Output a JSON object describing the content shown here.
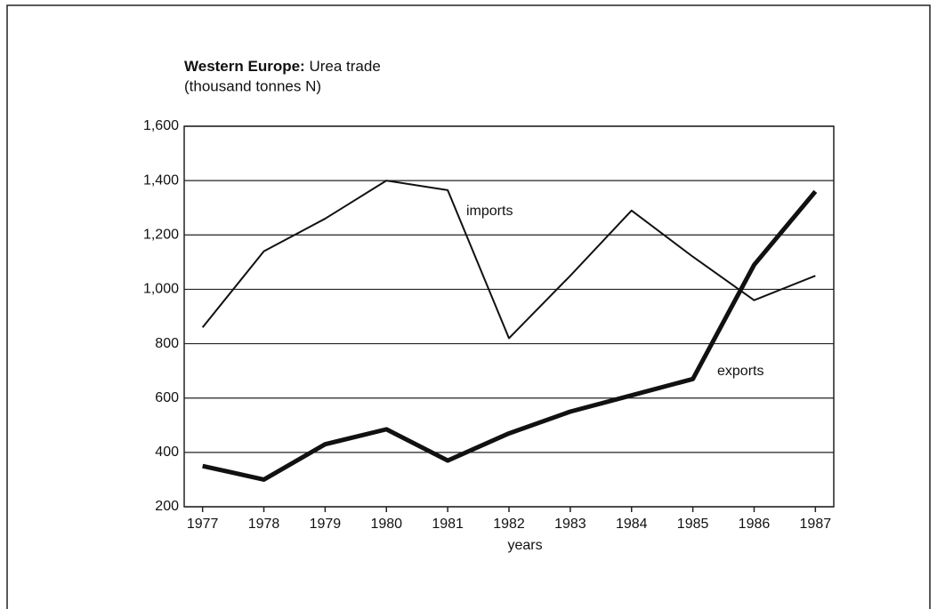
{
  "chart_data": {
    "type": "line",
    "title": [
      "Western Europe:",
      "Urea trade"
    ],
    "subtitle": "(thousand tonnes N)",
    "x_label": "years",
    "x": [
      1977,
      1978,
      1979,
      1980,
      1981,
      1982,
      1983,
      1984,
      1985,
      1986,
      1987
    ],
    "xlim": [
      1976.7,
      1987.3
    ],
    "xticks": [
      1977,
      1978,
      1979,
      1980,
      1981,
      1982,
      1983,
      1984,
      1985,
      1986,
      1987
    ],
    "ylim": [
      200,
      1600
    ],
    "yticks": [
      200,
      400,
      600,
      800,
      {
        "value": 1000,
        "label": "1,000"
      },
      {
        "value": 1200,
        "label": "1,200"
      },
      {
        "value": 1400,
        "label": "1,400"
      },
      {
        "value": 1600,
        "label": "1,600"
      }
    ],
    "grid": true,
    "series": [
      {
        "name": "imports",
        "color": "#111111",
        "width": 2,
        "values": [
          860,
          1140,
          1260,
          1400,
          1365,
          820,
          1050,
          1290,
          1120,
          960,
          1050
        ]
      },
      {
        "name": "exports",
        "color": "#111111",
        "width": 5,
        "values": [
          350,
          300,
          430,
          485,
          370,
          470,
          550,
          610,
          670,
          1090,
          1360
        ]
      }
    ]
  }
}
